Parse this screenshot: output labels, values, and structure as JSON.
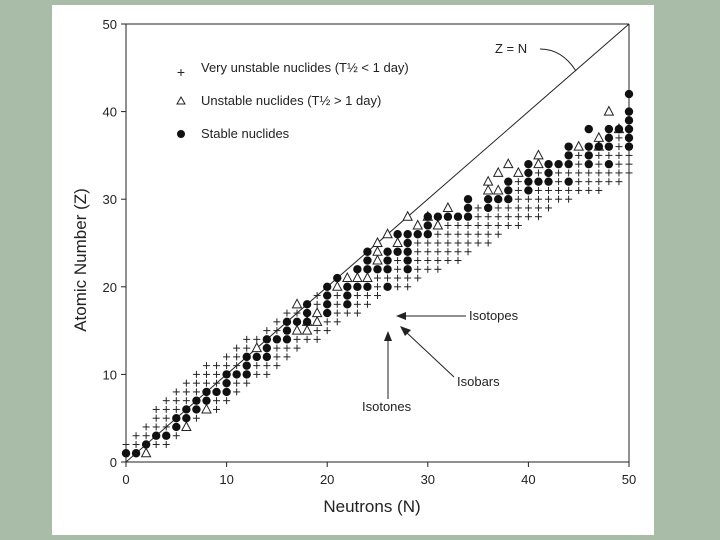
{
  "chart_data": {
    "type": "scatter",
    "title": "",
    "xlabel": "Neutrons (N)",
    "ylabel": "Atomic Number (Z)",
    "xlim": [
      0,
      50
    ],
    "ylim": [
      0,
      50
    ],
    "xticks": [
      "0",
      "10",
      "20",
      "30",
      "40",
      "50"
    ],
    "yticks": [
      "0",
      "10",
      "20",
      "30",
      "40",
      "50"
    ],
    "grid": false,
    "legend_position": "top-left",
    "legend": [
      {
        "marker": "+",
        "label": "Very unstable nuclides (T½ < 1 day)"
      },
      {
        "marker": "△",
        "label": "Unstable nuclides (T½ > 1 day)"
      },
      {
        "marker": "●",
        "label": "Stable nuclides"
      }
    ],
    "reference_line": {
      "label": "Z = N",
      "from": [
        0,
        0
      ],
      "to": [
        50,
        50
      ]
    },
    "annotations": [
      {
        "label": "Isotopes",
        "points_to": [
          27,
          17
        ]
      },
      {
        "label": "Isobars",
        "points_to": [
          27,
          17
        ]
      },
      {
        "label": "Isotones",
        "points_to": [
          26,
          15
        ]
      }
    ],
    "series": [
      {
        "name": "Stable nuclides",
        "marker": "filled-circle",
        "points": [
          [
            0,
            1
          ],
          [
            1,
            1
          ],
          [
            2,
            2
          ],
          [
            3,
            3
          ],
          [
            4,
            3
          ],
          [
            5,
            4
          ],
          [
            5,
            5
          ],
          [
            6,
            5
          ],
          [
            6,
            6
          ],
          [
            7,
            6
          ],
          [
            7,
            7
          ],
          [
            8,
            7
          ],
          [
            8,
            8
          ],
          [
            9,
            8
          ],
          [
            10,
            8
          ],
          [
            10,
            9
          ],
          [
            10,
            10
          ],
          [
            11,
            10
          ],
          [
            12,
            10
          ],
          [
            12,
            11
          ],
          [
            12,
            12
          ],
          [
            13,
            12
          ],
          [
            14,
            12
          ],
          [
            14,
            13
          ],
          [
            14,
            14
          ],
          [
            15,
            14
          ],
          [
            16,
            14
          ],
          [
            16,
            15
          ],
          [
            16,
            16
          ],
          [
            17,
            16
          ],
          [
            18,
            16
          ],
          [
            18,
            17
          ],
          [
            20,
            17
          ],
          [
            18,
            18
          ],
          [
            20,
            18
          ],
          [
            22,
            18
          ],
          [
            20,
            19
          ],
          [
            22,
            19
          ],
          [
            20,
            20
          ],
          [
            22,
            20
          ],
          [
            23,
            20
          ],
          [
            24,
            20
          ],
          [
            26,
            20
          ],
          [
            21,
            21
          ],
          [
            23,
            22
          ],
          [
            24,
            22
          ],
          [
            25,
            22
          ],
          [
            26,
            22
          ],
          [
            28,
            22
          ],
          [
            24,
            23
          ],
          [
            26,
            23
          ],
          [
            28,
            23
          ],
          [
            24,
            24
          ],
          [
            26,
            24
          ],
          [
            27,
            24
          ],
          [
            28,
            24
          ],
          [
            28,
            25
          ],
          [
            27,
            26
          ],
          [
            28,
            26
          ],
          [
            29,
            26
          ],
          [
            30,
            26
          ],
          [
            30,
            27
          ],
          [
            30,
            28
          ],
          [
            31,
            28
          ],
          [
            32,
            28
          ],
          [
            33,
            28
          ],
          [
            34,
            28
          ],
          [
            34,
            29
          ],
          [
            36,
            29
          ],
          [
            34,
            30
          ],
          [
            36,
            30
          ],
          [
            37,
            30
          ],
          [
            38,
            30
          ],
          [
            38,
            31
          ],
          [
            40,
            31
          ],
          [
            38,
            32
          ],
          [
            40,
            32
          ],
          [
            41,
            32
          ],
          [
            42,
            32
          ],
          [
            44,
            32
          ],
          [
            40,
            33
          ],
          [
            42,
            33
          ],
          [
            40,
            34
          ],
          [
            42,
            34
          ],
          [
            43,
            34
          ],
          [
            44,
            34
          ],
          [
            46,
            34
          ],
          [
            48,
            34
          ],
          [
            44,
            35
          ],
          [
            46,
            35
          ],
          [
            44,
            36
          ],
          [
            46,
            36
          ],
          [
            47,
            36
          ],
          [
            48,
            36
          ],
          [
            50,
            36
          ],
          [
            48,
            37
          ],
          [
            50,
            37
          ],
          [
            46,
            38
          ],
          [
            48,
            38
          ],
          [
            49,
            38
          ],
          [
            50,
            38
          ],
          [
            50,
            39
          ],
          [
            50,
            40
          ],
          [
            50,
            42
          ]
        ]
      },
      {
        "name": "Unstable nuclides",
        "marker": "open-triangle",
        "points": [
          [
            2,
            1
          ],
          [
            6,
            4
          ],
          [
            8,
            6
          ],
          [
            13,
            13
          ],
          [
            17,
            15
          ],
          [
            18,
            15
          ],
          [
            18,
            16
          ],
          [
            19,
            16
          ],
          [
            19,
            17
          ],
          [
            17,
            18
          ],
          [
            21,
            20
          ],
          [
            22,
            21
          ],
          [
            23,
            21
          ],
          [
            24,
            21
          ],
          [
            25,
            23
          ],
          [
            25,
            24
          ],
          [
            25,
            25
          ],
          [
            27,
            25
          ],
          [
            26,
            26
          ],
          [
            29,
            27
          ],
          [
            31,
            27
          ],
          [
            28,
            28
          ],
          [
            30,
            28
          ],
          [
            32,
            29
          ],
          [
            36,
            31
          ],
          [
            37,
            31
          ],
          [
            36,
            32
          ],
          [
            37,
            33
          ],
          [
            39,
            33
          ],
          [
            38,
            34
          ],
          [
            41,
            34
          ],
          [
            41,
            35
          ],
          [
            45,
            36
          ],
          [
            47,
            36
          ],
          [
            47,
            37
          ],
          [
            49,
            38
          ],
          [
            48,
            40
          ]
        ]
      }
    ]
  }
}
